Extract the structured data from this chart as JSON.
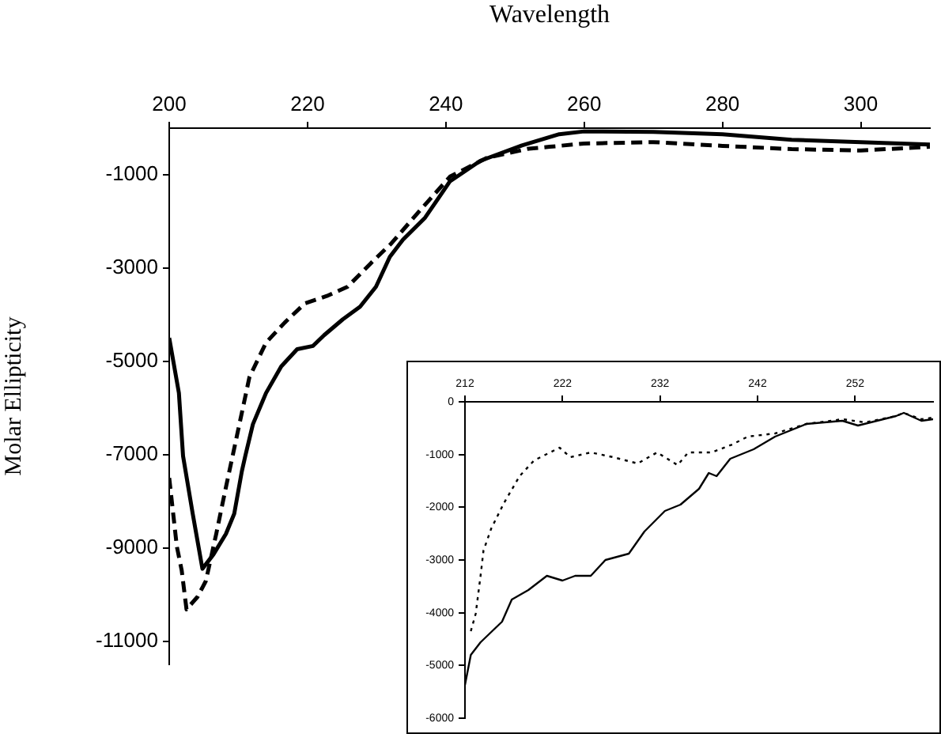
{
  "chart_data": [
    {
      "type": "line",
      "xlabel": "Wavelength",
      "ylabel": "Molar Ellipticity",
      "xlim": [
        200,
        310
      ],
      "xticks": [
        200,
        220,
        240,
        260,
        280,
        300
      ],
      "ylim": [
        -11500,
        0
      ],
      "yticks": [
        -1000,
        -3000,
        -5000,
        -7000,
        -9000,
        -11000
      ],
      "grid": false,
      "legend": false,
      "series": [
        {
          "color": "#000000",
          "line_style": "solid",
          "x": [
            200,
            201.4,
            202,
            203.4,
            204.8,
            206.4,
            208.2,
            209.4,
            210.5,
            211,
            212.1,
            214,
            216.2,
            218.5,
            220.8,
            222.4,
            225.1,
            227.6,
            229.9,
            231.9,
            233.8,
            237,
            240.6,
            245,
            251,
            256.4,
            260,
            270,
            280,
            290,
            300,
            310
          ],
          "values": [
            -4500,
            -5680,
            -7030,
            -8270,
            -9450,
            -9140,
            -8700,
            -8270,
            -7360,
            -7030,
            -6350,
            -5680,
            -5110,
            -4740,
            -4670,
            -4440,
            -4100,
            -3830,
            -3400,
            -2760,
            -2390,
            -1920,
            -1140,
            -700,
            -370,
            -130,
            -70,
            -80,
            -130,
            -250,
            -300,
            -350
          ]
        },
        {
          "color": "#000000",
          "line_style": "dashed",
          "x": [
            200,
            201.1,
            201.8,
            202.5,
            204.1,
            205.3,
            206.8,
            208.2,
            209.8,
            211.6,
            214,
            216.7,
            219.6,
            222.8,
            225.8,
            229.2,
            232,
            236,
            240.6,
            245.9,
            252,
            255,
            260,
            270,
            280,
            290,
            300,
            310
          ],
          "values": [
            -7500,
            -8970,
            -9480,
            -10320,
            -10050,
            -9710,
            -8700,
            -7700,
            -6590,
            -5340,
            -4600,
            -4170,
            -3760,
            -3600,
            -3400,
            -2890,
            -2490,
            -1810,
            -1040,
            -640,
            -440,
            -400,
            -330,
            -300,
            -380,
            -450,
            -480,
            -400
          ]
        }
      ]
    },
    {
      "type": "line",
      "xlim": [
        212,
        260
      ],
      "xticks": [
        212,
        222,
        232,
        242,
        252
      ],
      "ylim": [
        -6000,
        0
      ],
      "yticks": [
        0,
        -1000,
        -2000,
        -3000,
        -4000,
        -5000,
        -6000
      ],
      "grid": false,
      "legend": false,
      "series": [
        {
          "color": "#000000",
          "line_style": "solid",
          "x": [
            212,
            212.6,
            213.6,
            215.8,
            216.8,
            218.5,
            220.4,
            222,
            223.3,
            224.9,
            226.4,
            228.8,
            230.4,
            232.5,
            234.1,
            236,
            237,
            237.8,
            239.2,
            241.6,
            243.8,
            247,
            250.7,
            252.3,
            256.2,
            257,
            258.8,
            260
          ],
          "values": [
            -5370,
            -4800,
            -4560,
            -4170,
            -3750,
            -3570,
            -3300,
            -3390,
            -3300,
            -3300,
            -3000,
            -2880,
            -2460,
            -2070,
            -1950,
            -1650,
            -1350,
            -1410,
            -1080,
            -900,
            -660,
            -420,
            -360,
            -450,
            -270,
            -210,
            -360,
            -330
          ]
        },
        {
          "color": "#000000",
          "line_style": "dotted",
          "x": [
            212.6,
            213.1,
            213.6,
            213.9,
            214.7,
            216,
            217.6,
            219.1,
            221.7,
            222.8,
            224.9,
            227.2,
            229.7,
            231.7,
            233.8,
            234.9,
            237.3,
            239.4,
            241,
            243.8,
            247,
            250.7,
            253,
            256.2,
            257,
            258.8,
            260
          ],
          "values": [
            -4350,
            -4020,
            -3300,
            -2820,
            -2400,
            -1920,
            -1410,
            -1110,
            -870,
            -1050,
            -960,
            -1050,
            -1170,
            -960,
            -1200,
            -960,
            -960,
            -810,
            -660,
            -600,
            -420,
            -330,
            -390,
            -270,
            -210,
            -330,
            -300
          ]
        }
      ]
    }
  ]
}
